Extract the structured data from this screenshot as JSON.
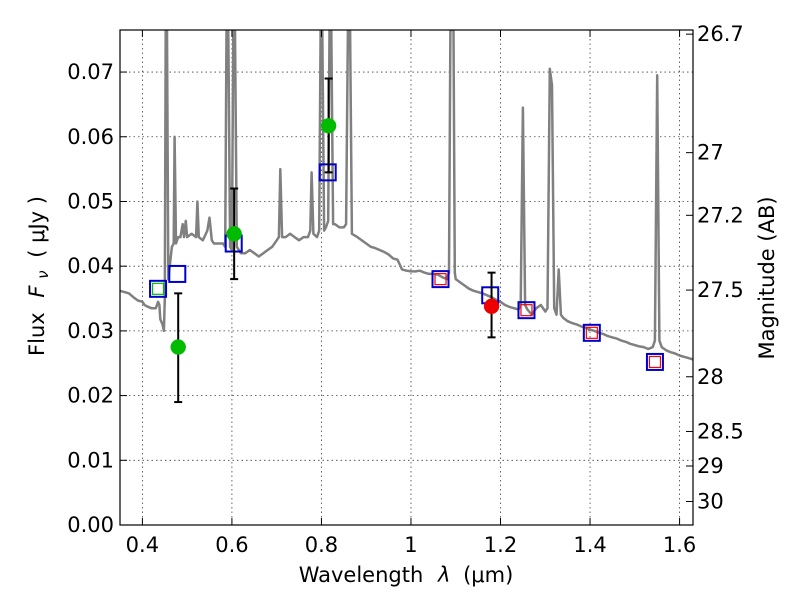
{
  "chart_data": {
    "type": "scatter",
    "xlabel": "Wavelength",
    "xlabel_symbol": "λ",
    "xlabel_unit": "(μm)",
    "ylabel": "Flux",
    "ylabel_symbol": "F",
    "ylabel_subscript": "ν",
    "ylabel_unit": "( μJy )",
    "ylabel_right": "Magnitude (AB)",
    "xlim": [
      0.35,
      1.63
    ],
    "ylim": [
      0.0,
      0.0765
    ],
    "grid": true,
    "x_ticks": [
      0.4,
      0.6,
      0.8,
      1.0,
      1.2,
      1.4,
      1.6
    ],
    "x_tick_labels": [
      "0.4",
      "0.6",
      "0.8",
      "1",
      "1.2",
      "1.4",
      "1.6"
    ],
    "y_ticks": [
      0.0,
      0.01,
      0.02,
      0.03,
      0.04,
      0.05,
      0.06,
      0.07
    ],
    "y_tick_labels": [
      "0.00",
      "0.01",
      "0.02",
      "0.03",
      "0.04",
      "0.05",
      "0.06",
      "0.07"
    ],
    "right_ticks": [
      {
        "mag": 26.7,
        "label": "26.7"
      },
      {
        "mag": 27.0,
        "label": "27"
      },
      {
        "mag": 27.2,
        "label": "27.2"
      },
      {
        "mag": 27.5,
        "label": "27.5"
      },
      {
        "mag": 28.0,
        "label": "28"
      },
      {
        "mag": 28.5,
        "label": "28.5"
      },
      {
        "mag": 29.0,
        "label": "29"
      },
      {
        "mag": 30.0,
        "label": "30"
      }
    ],
    "series": [
      {
        "name": "template_spectrum",
        "kind": "line",
        "color": "#808080",
        "points": [
          [
            0.35,
            0.0362
          ],
          [
            0.36,
            0.036
          ],
          [
            0.37,
            0.0358
          ],
          [
            0.38,
            0.0352
          ],
          [
            0.39,
            0.0347
          ],
          [
            0.4,
            0.0345
          ],
          [
            0.405,
            0.034
          ],
          [
            0.41,
            0.0338
          ],
          [
            0.42,
            0.0335
          ],
          [
            0.43,
            0.0335
          ],
          [
            0.435,
            0.0345
          ],
          [
            0.438,
            0.034
          ],
          [
            0.44,
            0.0318
          ],
          [
            0.445,
            0.031
          ],
          [
            0.448,
            0.03
          ],
          [
            0.45,
            0.035
          ],
          [
            0.452,
            0.0765
          ],
          [
            0.455,
            0.0765
          ],
          [
            0.458,
            0.038
          ],
          [
            0.462,
            0.0405
          ],
          [
            0.466,
            0.043
          ],
          [
            0.47,
            0.0435
          ],
          [
            0.472,
            0.06
          ],
          [
            0.475,
            0.0435
          ],
          [
            0.48,
            0.0445
          ],
          [
            0.485,
            0.0445
          ],
          [
            0.49,
            0.0465
          ],
          [
            0.493,
            0.0445
          ],
          [
            0.497,
            0.047
          ],
          [
            0.5,
            0.0445
          ],
          [
            0.51,
            0.045
          ],
          [
            0.52,
            0.0445
          ],
          [
            0.523,
            0.05
          ],
          [
            0.526,
            0.0445
          ],
          [
            0.535,
            0.044
          ],
          [
            0.545,
            0.0455
          ],
          [
            0.55,
            0.0475
          ],
          [
            0.555,
            0.044
          ],
          [
            0.56,
            0.0435
          ],
          [
            0.57,
            0.0435
          ],
          [
            0.58,
            0.0435
          ],
          [
            0.585,
            0.043
          ],
          [
            0.588,
            0.0765
          ],
          [
            0.592,
            0.0765
          ],
          [
            0.596,
            0.043
          ],
          [
            0.6,
            0.0425
          ],
          [
            0.603,
            0.0765
          ],
          [
            0.607,
            0.0765
          ],
          [
            0.611,
            0.043
          ],
          [
            0.62,
            0.042
          ],
          [
            0.63,
            0.042
          ],
          [
            0.64,
            0.0425
          ],
          [
            0.65,
            0.042
          ],
          [
            0.66,
            0.0415
          ],
          [
            0.67,
            0.042
          ],
          [
            0.68,
            0.0425
          ],
          [
            0.69,
            0.043
          ],
          [
            0.7,
            0.044
          ],
          [
            0.705,
            0.0445
          ],
          [
            0.708,
            0.055
          ],
          [
            0.712,
            0.0445
          ],
          [
            0.72,
            0.0445
          ],
          [
            0.73,
            0.045
          ],
          [
            0.74,
            0.0445
          ],
          [
            0.75,
            0.044
          ],
          [
            0.76,
            0.0445
          ],
          [
            0.77,
            0.0445
          ],
          [
            0.775,
            0.0455
          ],
          [
            0.778,
            0.0545
          ],
          [
            0.782,
            0.045
          ],
          [
            0.79,
            0.0445
          ],
          [
            0.795,
            0.0455
          ],
          [
            0.798,
            0.0765
          ],
          [
            0.802,
            0.0765
          ],
          [
            0.806,
            0.0455
          ],
          [
            0.81,
            0.046
          ],
          [
            0.815,
            0.047
          ],
          [
            0.818,
            0.0765
          ],
          [
            0.822,
            0.0765
          ],
          [
            0.826,
            0.0465
          ],
          [
            0.83,
            0.0465
          ],
          [
            0.84,
            0.046
          ],
          [
            0.85,
            0.046
          ],
          [
            0.855,
            0.0465
          ],
          [
            0.859,
            0.0765
          ],
          [
            0.864,
            0.0765
          ],
          [
            0.868,
            0.045
          ],
          [
            0.88,
            0.0445
          ],
          [
            0.89,
            0.044
          ],
          [
            0.9,
            0.0435
          ],
          [
            0.91,
            0.043
          ],
          [
            0.92,
            0.0428
          ],
          [
            0.93,
            0.0425
          ],
          [
            0.94,
            0.0422
          ],
          [
            0.95,
            0.0418
          ],
          [
            0.96,
            0.0412
          ],
          [
            0.97,
            0.041
          ],
          [
            0.98,
            0.0395
          ],
          [
            0.99,
            0.0393
          ],
          [
            1.0,
            0.0392
          ],
          [
            1.01,
            0.0392
          ],
          [
            1.02,
            0.0393
          ],
          [
            1.03,
            0.039
          ],
          [
            1.04,
            0.0388
          ],
          [
            1.05,
            0.0388
          ],
          [
            1.06,
            0.0387
          ],
          [
            1.07,
            0.0383
          ],
          [
            1.08,
            0.038
          ],
          [
            1.085,
            0.039
          ],
          [
            1.088,
            0.0765
          ],
          [
            1.095,
            0.0765
          ],
          [
            1.098,
            0.039
          ],
          [
            1.1,
            0.038
          ],
          [
            1.11,
            0.0375
          ],
          [
            1.12,
            0.037
          ],
          [
            1.13,
            0.0365
          ],
          [
            1.14,
            0.0362
          ],
          [
            1.15,
            0.036
          ],
          [
            1.16,
            0.0358
          ],
          [
            1.17,
            0.0355
          ],
          [
            1.18,
            0.0352
          ],
          [
            1.19,
            0.0348
          ],
          [
            1.2,
            0.0345
          ],
          [
            1.21,
            0.034
          ],
          [
            1.22,
            0.0337
          ],
          [
            1.23,
            0.0335
          ],
          [
            1.24,
            0.0333
          ],
          [
            1.245,
            0.034
          ],
          [
            1.25,
            0.0645
          ],
          [
            1.255,
            0.034
          ],
          [
            1.26,
            0.0333
          ],
          [
            1.27,
            0.0325
          ],
          [
            1.28,
            0.0335
          ],
          [
            1.29,
            0.034
          ],
          [
            1.3,
            0.033
          ],
          [
            1.305,
            0.0335
          ],
          [
            1.31,
            0.0705
          ],
          [
            1.315,
            0.068
          ],
          [
            1.32,
            0.0335
          ],
          [
            1.325,
            0.0325
          ],
          [
            1.33,
            0.0395
          ],
          [
            1.335,
            0.0325
          ],
          [
            1.34,
            0.032
          ],
          [
            1.35,
            0.0315
          ],
          [
            1.36,
            0.0312
          ],
          [
            1.37,
            0.031
          ],
          [
            1.38,
            0.0307
          ],
          [
            1.39,
            0.0305
          ],
          [
            1.4,
            0.0302
          ],
          [
            1.41,
            0.03
          ],
          [
            1.42,
            0.0297
          ],
          [
            1.43,
            0.0295
          ],
          [
            1.44,
            0.0292
          ],
          [
            1.45,
            0.029
          ],
          [
            1.46,
            0.0288
          ],
          [
            1.47,
            0.0285
          ],
          [
            1.48,
            0.0283
          ],
          [
            1.49,
            0.028
          ],
          [
            1.5,
            0.0278
          ],
          [
            1.51,
            0.0276
          ],
          [
            1.52,
            0.0275
          ],
          [
            1.53,
            0.0272
          ],
          [
            1.54,
            0.0275
          ],
          [
            1.545,
            0.0285
          ],
          [
            1.55,
            0.0695
          ],
          [
            1.555,
            0.0285
          ],
          [
            1.56,
            0.0275
          ],
          [
            1.57,
            0.027
          ],
          [
            1.58,
            0.0267
          ],
          [
            1.59,
            0.0265
          ],
          [
            1.6,
            0.0262
          ],
          [
            1.61,
            0.026
          ],
          [
            1.62,
            0.0258
          ],
          [
            1.63,
            0.0256
          ]
        ]
      },
      {
        "name": "model_bandpass_blue",
        "kind": "square",
        "color": "#0000cc",
        "points": [
          [
            0.435,
            0.0365
          ],
          [
            0.478,
            0.0388
          ],
          [
            0.604,
            0.0435
          ],
          [
            0.814,
            0.0545
          ],
          [
            1.066,
            0.038
          ],
          [
            1.177,
            0.0355
          ],
          [
            1.258,
            0.0332
          ],
          [
            1.404,
            0.0297
          ],
          [
            1.545,
            0.0252
          ]
        ]
      },
      {
        "name": "model_bandpass_red",
        "kind": "square",
        "color": "#ff0000",
        "points": [
          [
            1.066,
            0.038
          ],
          [
            1.258,
            0.0332
          ],
          [
            1.404,
            0.0297
          ],
          [
            1.545,
            0.0252
          ]
        ]
      },
      {
        "name": "model_bandpass_green",
        "kind": "square",
        "color": "#00bb00",
        "points": [
          [
            0.435,
            0.0365
          ]
        ]
      },
      {
        "name": "observed_green",
        "kind": "point",
        "color": "#00bb00",
        "points": [
          {
            "x": 0.48,
            "y": 0.0275,
            "yerr_low": 0.019,
            "yerr_high": 0.0358
          },
          {
            "x": 0.605,
            "y": 0.045,
            "yerr_low": 0.038,
            "yerr_high": 0.052
          },
          {
            "x": 0.816,
            "y": 0.0617,
            "yerr_low": 0.0545,
            "yerr_high": 0.069
          }
        ]
      },
      {
        "name": "observed_red",
        "kind": "point",
        "color": "#ee0000",
        "points": [
          {
            "x": 1.18,
            "y": 0.0338,
            "yerr_low": 0.029,
            "yerr_high": 0.039
          }
        ]
      }
    ]
  }
}
